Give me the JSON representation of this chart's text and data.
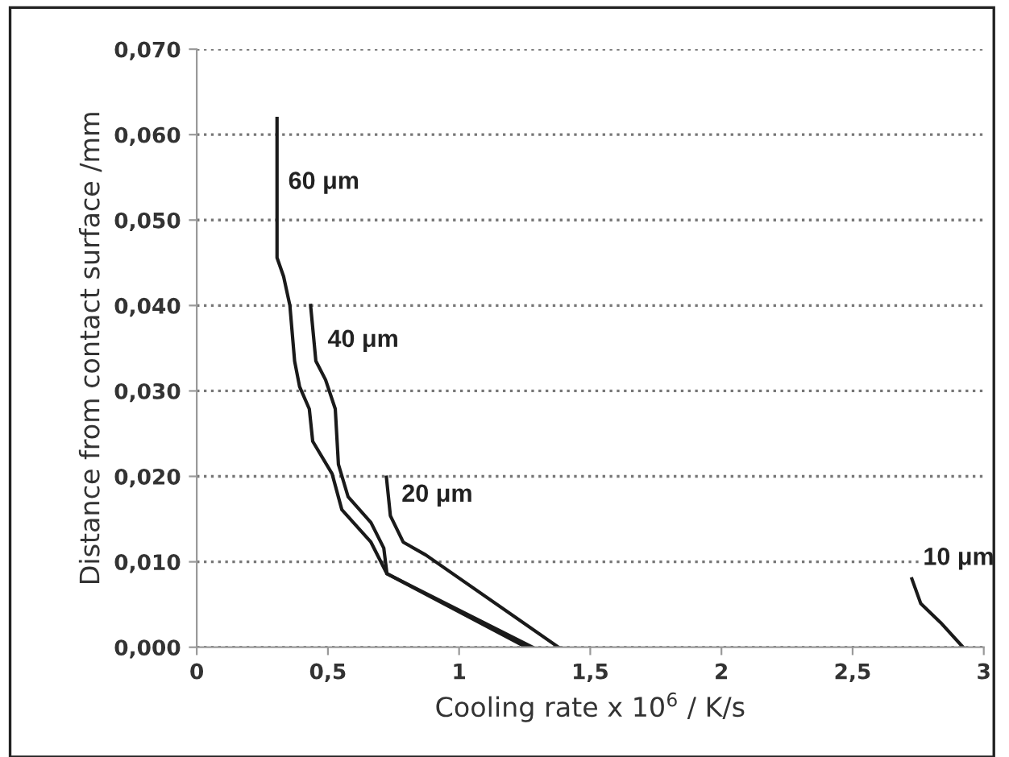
{
  "chart_data": {
    "type": "line",
    "xlabel": "Cooling rate x 10$^{6}$ / K/s",
    "ylabel": "Distance from contact surface /mm",
    "series": [
      {
        "color": "#1a1a1a",
        "x": [
          0.306,
          0.306,
          0.331,
          0.355,
          0.373,
          0.392,
          0.429,
          0.442,
          0.516,
          0.553,
          0.664,
          0.725,
          1.256
        ],
        "values": [
          0.0619,
          0.0456,
          0.0434,
          0.04,
          0.0335,
          0.0305,
          0.0279,
          0.0241,
          0.0203,
          0.0161,
          0.0123,
          0.0086,
          0.0
        ]
      },
      {
        "color": "#1a1a1a",
        "x": [
          0.434,
          0.454,
          0.491,
          0.528,
          0.54,
          0.577,
          0.664,
          0.713,
          0.725,
          1.28
        ],
        "values": [
          0.04,
          0.0335,
          0.0313,
          0.0279,
          0.0214,
          0.0176,
          0.0146,
          0.0116,
          0.0086,
          0.0
        ]
      },
      {
        "color": "#1a1a1a",
        "x": [
          0.723,
          0.738,
          0.787,
          0.873,
          1.379
        ],
        "values": [
          0.0199,
          0.0154,
          0.0123,
          0.0108,
          0.0
        ]
      },
      {
        "color": "#1a1a1a",
        "x": [
          2.726,
          2.76,
          2.835,
          2.921
        ],
        "values": [
          0.008,
          0.0051,
          0.0029,
          0.0
        ]
      }
    ],
    "annotations": [
      {
        "text": "60 μm",
        "x": 0.306,
        "y": 0.052
      },
      {
        "text": "40 μm",
        "x": 0.456,
        "y": 0.0335
      },
      {
        "text": "20 μm",
        "x": 0.738,
        "y": 0.0154
      },
      {
        "text": "10 μm",
        "x": 2.726,
        "y": 0.008
      }
    ],
    "xlim": [
      0,
      3
    ],
    "ylim": [
      0,
      0.07
    ],
    "xticks": [
      0,
      {
        "value": 0.5,
        "label": "0,5"
      },
      1,
      {
        "value": 1.5,
        "label": "1,5"
      },
      2,
      {
        "value": 2.5,
        "label": "2,5"
      },
      3
    ],
    "yticks": [
      {
        "value": 0,
        "label": "0,000"
      },
      {
        "value": 0.01,
        "label": "0,010"
      },
      {
        "value": 0.02,
        "label": "0,020"
      },
      {
        "value": 0.03,
        "label": "0,030"
      },
      {
        "value": 0.04,
        "label": "0,040"
      },
      {
        "value": 0.05,
        "label": "0,050"
      },
      {
        "value": 0.06,
        "label": "0,060"
      },
      {
        "value": 0.07,
        "label": "0,070"
      }
    ],
    "grid": "y",
    "line_style": "solid",
    "marker": "none"
  }
}
